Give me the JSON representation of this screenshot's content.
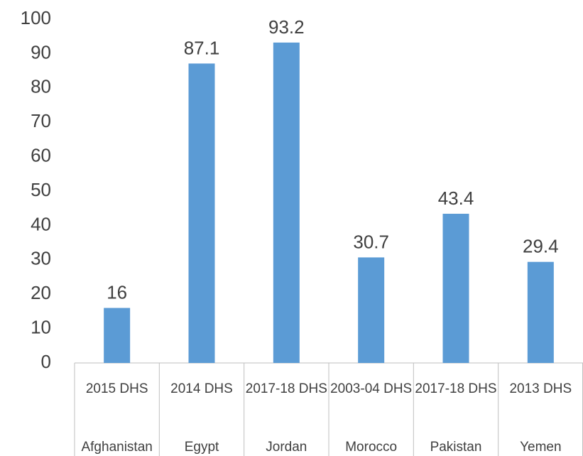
{
  "chart_data": {
    "type": "bar",
    "categories": [
      "2015 DHS",
      "2014 DHS",
      "2017-18 DHS",
      "2003-04 DHS",
      "2017-18 DHS",
      "2013 DHS"
    ],
    "groups": [
      "Afghanistan",
      "Egypt",
      "Jordan",
      "Morocco",
      "Pakistan",
      "Yemen"
    ],
    "values": [
      16,
      87.1,
      93.2,
      30.7,
      43.4,
      29.4
    ],
    "color": "#5b9bd5",
    "ylim": [
      0,
      100
    ],
    "yticks": [
      0,
      10,
      20,
      30,
      40,
      50,
      60,
      70,
      80,
      90,
      100
    ],
    "grid": false
  }
}
